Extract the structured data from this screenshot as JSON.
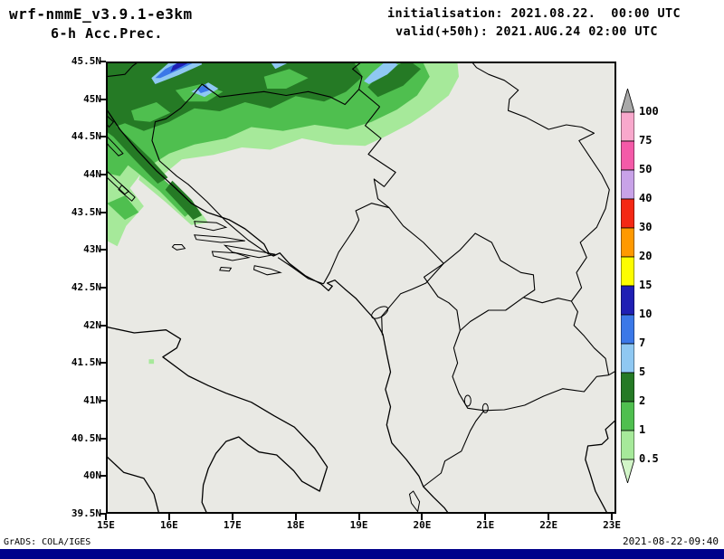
{
  "header": {
    "model": "wrf-nmmE_v3.9.1-e3km",
    "product": "6-h Acc.Prec.",
    "initialisation": "initialisation: 2021.08.22.  00:00 UTC",
    "valid": "valid(+50h): 2021.AUG.24 02:00 UTC"
  },
  "map": {
    "background": "#e9e9e4",
    "line_color": "#000000",
    "lat_ticks": [
      "45.5N",
      "45N",
      "44.5N",
      "44N",
      "43.5N",
      "43N",
      "42.5N",
      "42N",
      "41.5N",
      "41N",
      "40.5N",
      "40N",
      "39.5N"
    ],
    "lon_ticks": [
      "15E",
      "16E",
      "17E",
      "18E",
      "19E",
      "20E",
      "21E",
      "22E",
      "23E"
    ],
    "lat_range": [
      39.5,
      45.5
    ],
    "lon_range": [
      15,
      23.07
    ]
  },
  "colorbar": {
    "labels": [
      "100",
      "75",
      "50",
      "40",
      "30",
      "20",
      "15",
      "10",
      "7",
      "5",
      "2",
      "1",
      "0.5"
    ],
    "levels_mm": [
      100,
      75,
      50,
      40,
      30,
      20,
      15,
      10,
      7,
      5,
      2,
      1,
      0.5
    ],
    "colors_top_to_bottom": [
      "#a9a9a9",
      "#f8a8cc",
      "#f45aa8",
      "#c8a2e8",
      "#f42814",
      "#ff9900",
      "#fdfd00",
      "#1f1fb4",
      "#3b78e8",
      "#8fc8f2",
      "#257a25",
      "#4fbf4f",
      "#a6e99a",
      "#d2f5c8"
    ]
  },
  "palette": {
    "gt100": "#a9a9a9",
    "p75_100": "#f8a8cc",
    "p50_75": "#f45aa8",
    "p40_50": "#c8a2e8",
    "p30_40": "#f42814",
    "p20_30": "#ff9900",
    "p15_20": "#fdfd00",
    "p10_15": "#1f1fb4",
    "p7_10": "#3b78e8",
    "p5_7": "#8fc8f2",
    "p2_5": "#257a25",
    "p1_2": "#4fbf4f",
    "p0_5_1": "#a6e99a",
    "lt0_5": "#d2f5c8"
  },
  "footer": {
    "credit": "GrADS: COLA/IGES",
    "timestamp": "2021-08-22-09:40",
    "bar_color": "#00008b"
  }
}
